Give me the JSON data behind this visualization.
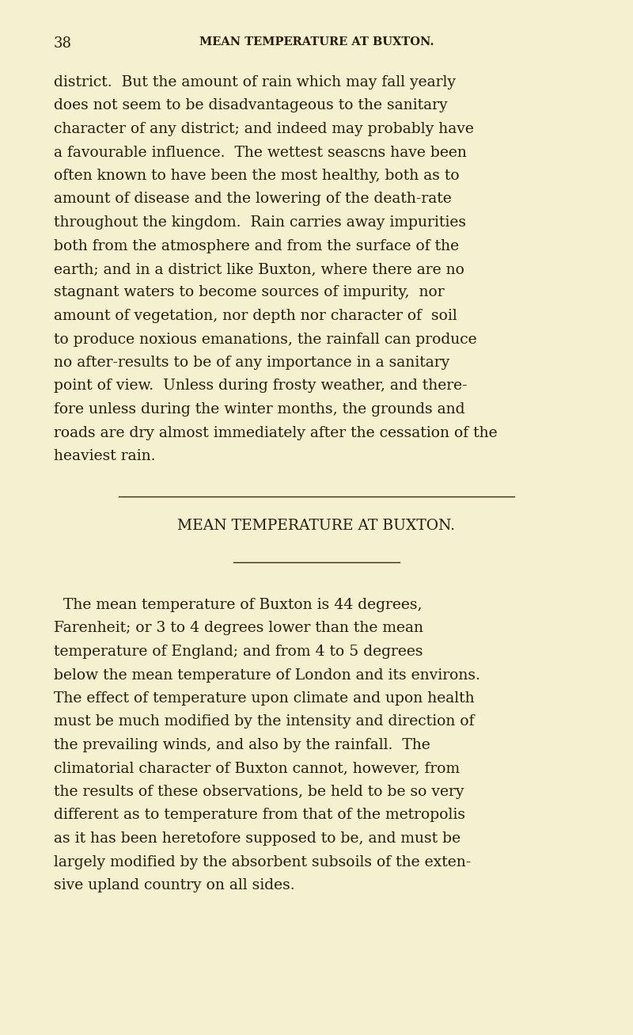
{
  "background_color": "#f5f0d0",
  "page_number": "38",
  "header_text": "MEAN TEMPERATURE AT BUXTON.",
  "section_title": "MEAN TEMPERATURE AT BUXTON.",
  "header_fontsize": 10.5,
  "section_title_fontsize": 13.5,
  "body_fontsize": 13.5,
  "page_number_fontsize": 13,
  "paragraph1_lines": [
    "district.  But the amount of rain which may fall yearly",
    "does not seem to be disadvantageous to the sanitary",
    "character of any district; and indeed may probably have",
    "a favourable influence.  The wettest seascns have been",
    "often known to have been the most healthy, both as to",
    "amount of disease and the lowering of the death-rate",
    "throughout the kingdom.  Rain carries away impurities",
    "both from the atmosphere and from the surface of the",
    "earth; and in a district like Buxton, where there are no",
    "stagnant waters to become sources of impurity,  nor",
    "amount of vegetation, nor depth nor character of  soil",
    "to produce noxious emanations, the rainfall can produce",
    "no after-results to be of any importance in a sanitary",
    "point of view.  Unless during frosty weather, and there-",
    "fore unless during the winter months, the grounds and",
    "roads are dry almost immediately after the cessation of the",
    "heaviest rain."
  ],
  "paragraph2_lines": [
    "  The mean temperature of Buxton is 44 degrees,",
    "Farenheit; or 3 to 4 degrees lower than the mean",
    "temperature of England; and from 4 to 5 degrees",
    "below the mean temperature of London and its environs.",
    "The effect of temperature upon climate and upon health",
    "must be much modified by the intensity and direction of",
    "the prevailing winds, and also by the rainfall.  The",
    "climatorial character of Buxton cannot, however, from",
    "the results of these observations, be held to be so very",
    "different as to temperature from that of the metropolis",
    "as it has been heretofore supposed to be, and must be",
    "largely modified by the absorbent subsoils of the exten-",
    "sive upland country on all sides."
  ],
  "text_color": "#2a1a0a",
  "line_color": "#3a2a10",
  "font_family": "DejaVu Serif"
}
